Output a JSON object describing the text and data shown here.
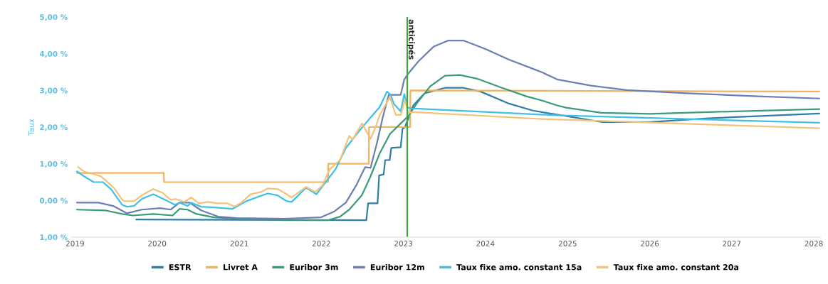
{
  "chart_data": {
    "type": "line",
    "ylabel": "Taux",
    "xlim": [
      "2018-12-15",
      "2028-01-31"
    ],
    "xticks": [
      {
        "value": "2019-01-01",
        "label": "2019"
      },
      {
        "value": "2020-01-01",
        "label": "2020"
      },
      {
        "value": "2021-01-01",
        "label": "2021"
      },
      {
        "value": "2022-01-01",
        "label": "2022"
      },
      {
        "value": "2023-01-01",
        "label": "2023"
      },
      {
        "value": "2024-01-01",
        "label": "2024"
      },
      {
        "value": "2025-01-01",
        "label": "2025"
      },
      {
        "value": "2026-01-01",
        "label": "2026"
      },
      {
        "value": "2027-01-01",
        "label": "2027"
      },
      {
        "value": "2028-01-01",
        "label": "2028"
      }
    ],
    "ylim": [
      -1,
      5
    ],
    "yticks": [
      {
        "value": -1,
        "label": "1,00 %"
      },
      {
        "value": 0,
        "label": "0,00 %"
      },
      {
        "value": 1,
        "label": "1,00 %"
      },
      {
        "value": 2,
        "label": "2,00 %"
      },
      {
        "value": 3,
        "label": "3,00 %"
      },
      {
        "value": 4,
        "label": "4,00 %"
      },
      {
        "value": 5,
        "label": "5,00 %"
      }
    ],
    "grid": false,
    "legend": "bottom",
    "marker": "none",
    "line_style": "solid",
    "ref_lines": [
      {
        "axis": "x",
        "value": "2023-01-18",
        "label": "anticipés",
        "color": "#3aaa35"
      }
    ],
    "series": [
      {
        "name": "ESTR",
        "color": "#2f7ea8",
        "x": [
          "2019-10-01",
          "2021-01-01",
          "2022-07-20",
          "2022-07-28",
          "2022-09-08",
          "2022-09-15",
          "2022-10-05",
          "2022-10-12",
          "2022-11-01",
          "2022-11-08",
          "2022-12-20",
          "2022-12-28",
          "2023-01-08",
          "2023-02-14",
          "2023-04-05",
          "2023-07-05",
          "2023-09-25",
          "2023-12-10",
          "2024-04-15",
          "2024-07-30",
          "2024-11-15",
          "2025-05-30",
          "2026-01-01",
          "2026-09-20",
          "2028-01-25"
        ],
        "values": [
          -0.52,
          -0.53,
          -0.54,
          -0.08,
          -0.08,
          0.68,
          0.71,
          1.1,
          1.1,
          1.43,
          1.45,
          1.95,
          2.0,
          2.59,
          2.92,
          3.07,
          3.07,
          2.97,
          2.64,
          2.45,
          2.34,
          2.14,
          2.14,
          2.24,
          2.37
        ]
      },
      {
        "name": "Livret A",
        "color": "#f2b25c",
        "x": [
          "2019-01-10",
          "2020-01-31",
          "2020-02-01",
          "2022-01-31",
          "2022-02-01",
          "2022-07-31",
          "2022-08-01",
          "2023-01-31",
          "2023-02-01",
          "2028-01-25"
        ],
        "values": [
          0.75,
          0.75,
          0.5,
          0.5,
          1.0,
          1.0,
          2.0,
          2.0,
          3.0,
          2.97
        ]
      },
      {
        "name": "Euribor 3m",
        "color": "#3a9a7a",
        "x": [
          "2019-01-10",
          "2019-05-15",
          "2019-07-30",
          "2019-09-15",
          "2019-12-15",
          "2020-03-10",
          "2020-04-10",
          "2020-05-15",
          "2020-06-25",
          "2020-09-10",
          "2020-12-20",
          "2021-07-20",
          "2022-01-30",
          "2022-03-25",
          "2022-05-05",
          "2022-06-30",
          "2022-08-08",
          "2022-09-18",
          "2022-11-02",
          "2022-12-15",
          "2023-01-23",
          "2023-03-01",
          "2023-04-30",
          "2023-07-05",
          "2023-09-10",
          "2023-11-25",
          "2024-03-15",
          "2024-07-01",
          "2024-09-10",
          "2024-11-15",
          "2024-12-25",
          "2025-05-30",
          "2026-01-01",
          "2026-09-20",
          "2028-01-25"
        ],
        "values": [
          -0.25,
          -0.27,
          -0.37,
          -0.41,
          -0.37,
          -0.41,
          -0.23,
          -0.25,
          -0.37,
          -0.46,
          -0.5,
          -0.54,
          -0.54,
          -0.44,
          -0.25,
          0.14,
          0.66,
          1.29,
          1.81,
          2.07,
          2.3,
          2.64,
          3.11,
          3.4,
          3.42,
          3.32,
          3.07,
          2.84,
          2.72,
          2.59,
          2.53,
          2.39,
          2.36,
          2.41,
          2.49
        ]
      },
      {
        "name": "Euribor 12m",
        "color": "#6b7fb5",
        "x": [
          "2019-01-10",
          "2019-04-15",
          "2019-06-20",
          "2019-08-20",
          "2019-10-25",
          "2020-01-15",
          "2020-03-01",
          "2020-04-10",
          "2020-05-25",
          "2020-07-15",
          "2020-09-28",
          "2020-12-20",
          "2021-07-20",
          "2021-12-30",
          "2022-02-25",
          "2022-04-20",
          "2022-06-05",
          "2022-07-15",
          "2022-08-08",
          "2022-09-05",
          "2022-10-01",
          "2022-10-28",
          "2022-12-20",
          "2023-01-05",
          "2023-01-23",
          "2023-03-10",
          "2023-05-15",
          "2023-07-20",
          "2023-09-25",
          "2024-01-01",
          "2024-04-15",
          "2024-07-30",
          "2024-09-10",
          "2024-11-15",
          "2025-04-15",
          "2025-09-20",
          "2026-06-15",
          "2027-04-25",
          "2028-01-25"
        ],
        "values": [
          -0.06,
          -0.06,
          -0.15,
          -0.35,
          -0.25,
          -0.21,
          -0.25,
          -0.06,
          -0.06,
          -0.27,
          -0.44,
          -0.48,
          -0.5,
          -0.46,
          -0.31,
          -0.06,
          0.41,
          0.91,
          0.89,
          1.56,
          2.26,
          2.88,
          2.88,
          3.3,
          3.46,
          3.8,
          4.19,
          4.36,
          4.36,
          4.13,
          3.84,
          3.59,
          3.49,
          3.3,
          3.13,
          3.01,
          2.92,
          2.84,
          2.78
        ]
      },
      {
        "name": "Taux fixe amo. constant 15a",
        "color": "#3fc0e6",
        "x": [
          "2019-01-10",
          "2019-02-10",
          "2019-03-25",
          "2019-05-05",
          "2019-06-10",
          "2019-07-30",
          "2019-08-20",
          "2019-09-20",
          "2019-10-25",
          "2019-12-15",
          "2020-02-05",
          "2020-03-20",
          "2020-04-10",
          "2020-05-15",
          "2020-06-01",
          "2020-07-15",
          "2020-09-10",
          "2020-12-01",
          "2021-02-01",
          "2021-03-25",
          "2021-05-08",
          "2021-06-20",
          "2021-07-20",
          "2021-08-01",
          "2021-08-22",
          "2021-10-25",
          "2021-12-10",
          "2022-01-20",
          "2022-03-05",
          "2022-04-20",
          "2022-06-15",
          "2022-08-08",
          "2022-09-18",
          "2022-10-20",
          "2022-11-05",
          "2022-11-20",
          "2022-12-20",
          "2023-01-05",
          "2023-01-20",
          "2023-02-05",
          "2024-11-15",
          "2028-01-25"
        ],
        "values": [
          0.79,
          0.66,
          0.5,
          0.5,
          0.31,
          -0.12,
          -0.17,
          -0.15,
          0.04,
          0.17,
          0.02,
          -0.12,
          -0.06,
          -0.15,
          -0.06,
          -0.17,
          -0.19,
          -0.23,
          -0.02,
          0.1,
          0.19,
          0.14,
          0.02,
          -0.02,
          -0.04,
          0.35,
          0.17,
          0.5,
          0.85,
          1.43,
          1.87,
          2.26,
          2.55,
          2.97,
          2.88,
          2.63,
          2.43,
          2.9,
          2.53,
          2.51,
          2.32,
          2.12
        ]
      },
      {
        "name": "Taux fixe amo. constant 20a",
        "color": "#f5c27a",
        "x": [
          "2019-01-15",
          "2019-02-10",
          "2019-04-25",
          "2019-05-15",
          "2019-06-25",
          "2019-07-30",
          "2019-08-10",
          "2019-09-20",
          "2019-10-25",
          "2019-12-15",
          "2020-01-25",
          "2020-03-01",
          "2020-03-25",
          "2020-05-01",
          "2020-06-01",
          "2020-07-05",
          "2020-08-15",
          "2020-09-28",
          "2020-11-10",
          "2020-12-10",
          "2021-01-10",
          "2021-02-20",
          "2021-04-08",
          "2021-05-08",
          "2021-06-20",
          "2021-07-20",
          "2021-08-22",
          "2021-10-25",
          "2021-12-05",
          "2022-01-07",
          "2022-02-07",
          "2022-03-25",
          "2022-05-05",
          "2022-05-20",
          "2022-07-01",
          "2022-08-08",
          "2022-08-30",
          "2022-09-18",
          "2022-11-02",
          "2022-11-28",
          "2022-12-20",
          "2023-01-08",
          "2023-01-23",
          "2023-02-14",
          "2024-09-10",
          "2028-01-25"
        ],
        "values": [
          0.91,
          0.79,
          0.66,
          0.56,
          0.33,
          0.02,
          -0.02,
          -0.02,
          0.14,
          0.31,
          0.21,
          0.02,
          0.04,
          -0.04,
          0.08,
          -0.08,
          -0.04,
          -0.08,
          -0.08,
          -0.17,
          -0.06,
          0.17,
          0.23,
          0.33,
          0.31,
          0.21,
          0.08,
          0.37,
          0.23,
          0.42,
          0.85,
          1.1,
          1.76,
          1.66,
          2.1,
          1.68,
          2.0,
          2.33,
          2.82,
          2.33,
          2.33,
          2.74,
          2.39,
          2.41,
          2.22,
          1.97
        ]
      }
    ]
  }
}
